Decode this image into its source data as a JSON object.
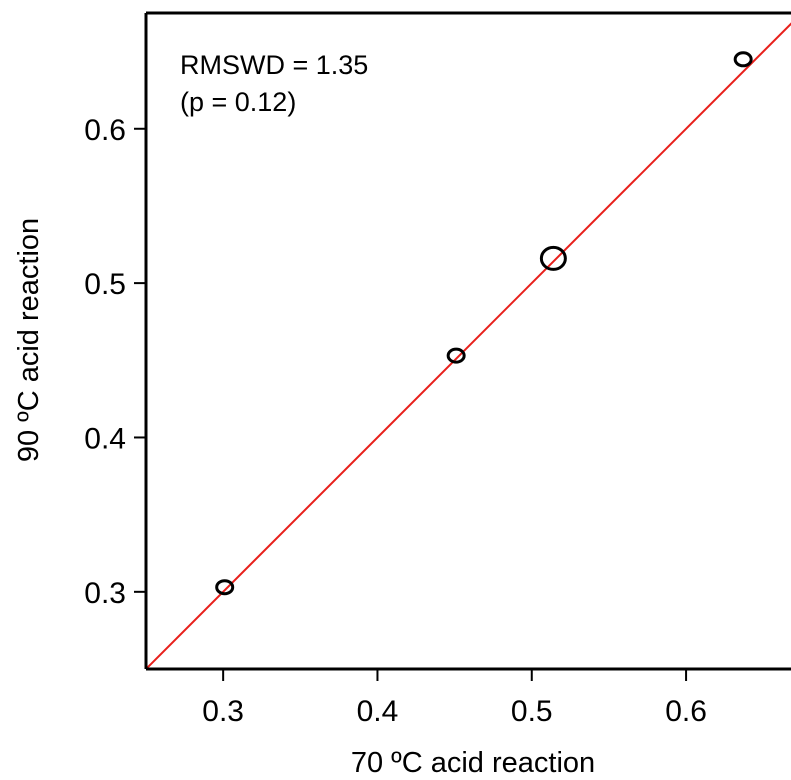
{
  "chart_data": {
    "type": "scatter",
    "xlabel": "70 ºC acid reaction",
    "ylabel": "90 ºC acid reaction",
    "xlim": [
      0.25,
      0.668
    ],
    "ylim": [
      0.25,
      0.675
    ],
    "x_ticks": [
      0.3,
      0.4,
      0.5,
      0.6
    ],
    "y_ticks": [
      0.3,
      0.4,
      0.5,
      0.6
    ],
    "x_tick_labels": [
      "0.3",
      "0.4",
      "0.5",
      "0.6"
    ],
    "y_tick_labels": [
      "0.3",
      "0.4",
      "0.5",
      "0.6"
    ],
    "grid": false,
    "points": [
      {
        "x": 0.301,
        "y": 0.303,
        "uncertainty": "small"
      },
      {
        "x": 0.451,
        "y": 0.453,
        "uncertainty": "small"
      },
      {
        "x": 0.514,
        "y": 0.516,
        "uncertainty": "large"
      },
      {
        "x": 0.637,
        "y": 0.645,
        "uncertainty": "small"
      }
    ],
    "reference_line": {
      "type": "1:1",
      "color": "#e8201c"
    },
    "annotations": [
      "RMSWD = 1.35",
      "(p = 0.12)"
    ],
    "marker_color": "#000000"
  }
}
